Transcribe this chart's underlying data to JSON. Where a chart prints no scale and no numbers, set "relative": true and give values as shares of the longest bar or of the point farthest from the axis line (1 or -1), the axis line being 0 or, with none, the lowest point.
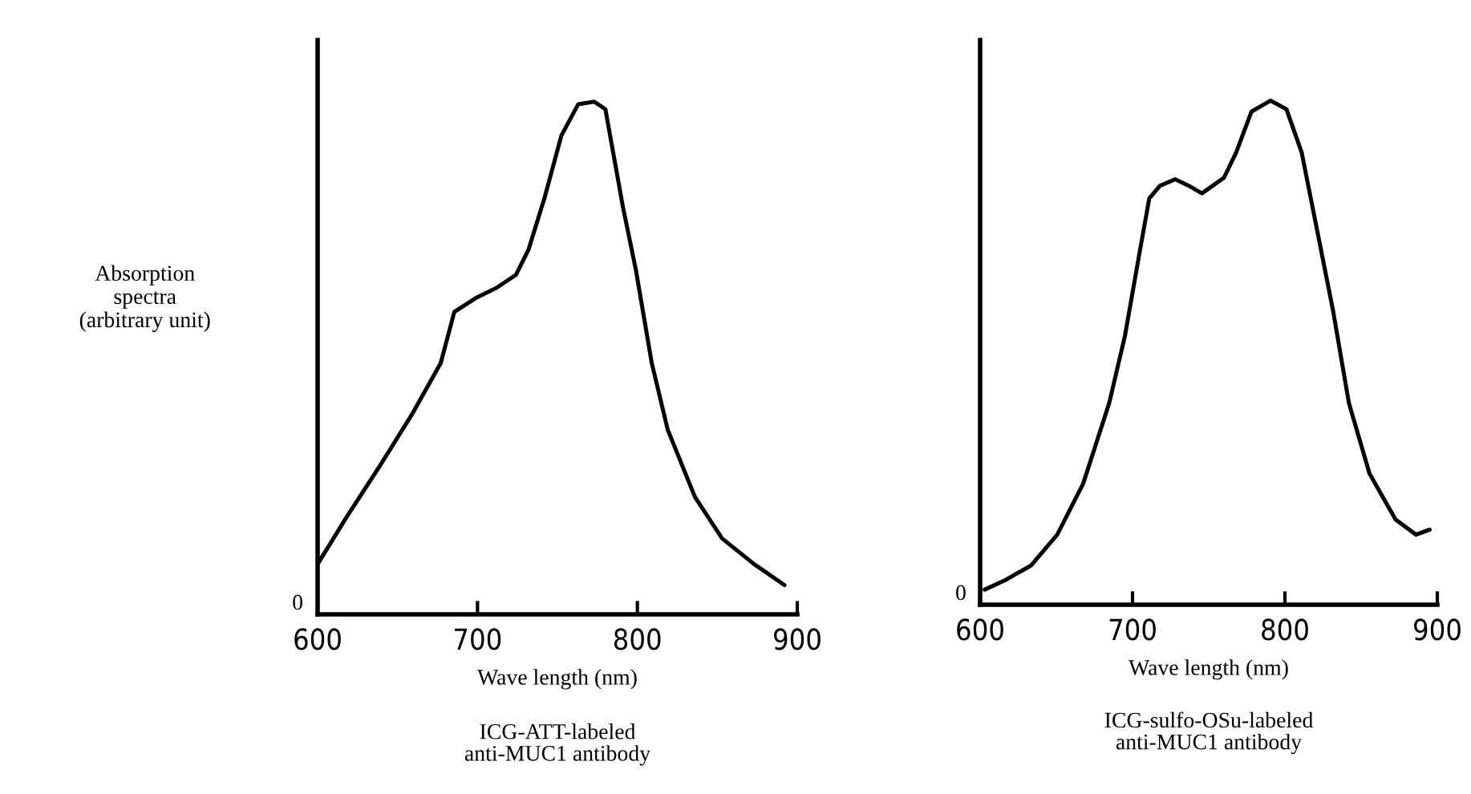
{
  "chart_data": [
    {
      "type": "line",
      "relative": true,
      "ylabel": "Absorption\nspectra\n(arbitrary unit)",
      "xlabel": "Wave length (nm)",
      "xlim": [
        600,
        900
      ],
      "xticks": [
        600,
        700,
        800,
        900
      ],
      "annotations": [
        "0",
        "ICG-ATT-labeled\nanti-MUC1 antibody"
      ],
      "series": [
        {
          "color": "#000000",
          "x": [
            600,
            618,
            639,
            659,
            677,
            685.5,
            699,
            712,
            724,
            732,
            742,
            752.5,
            763,
            773,
            780,
            791,
            799,
            809,
            819,
            836,
            853,
            873,
            892
          ],
          "values": [
            0.098,
            0.189,
            0.29,
            0.39,
            0.49,
            0.59,
            0.617,
            0.637,
            0.662,
            0.712,
            0.813,
            0.934,
            0.995,
            1.0,
            0.985,
            0.794,
            0.673,
            0.49,
            0.36,
            0.229,
            0.148,
            0.098,
            0.057
          ]
        }
      ]
    },
    {
      "type": "line",
      "relative": true,
      "xlabel": "Wave length (nm)",
      "xlim": [
        600,
        900
      ],
      "xticks": [
        600,
        700,
        800,
        900
      ],
      "annotations": [
        "0",
        "ICG-sulfo-OSu-labeled\nanti-MUC1 antibody"
      ],
      "series": [
        {
          "color": "#000000",
          "x": [
            603,
            616,
            633.5,
            650.6,
            667.6,
            684.7,
            695,
            705,
            711,
            718,
            728,
            737,
            745.5,
            760,
            768,
            778,
            790.6,
            801,
            811,
            821,
            831.6,
            842,
            855.5,
            872.6,
            886,
            895
          ],
          "values": [
            0.03,
            0.048,
            0.078,
            0.139,
            0.24,
            0.4,
            0.533,
            0.705,
            0.806,
            0.831,
            0.844,
            0.831,
            0.816,
            0.847,
            0.897,
            0.978,
            1.0,
            0.983,
            0.897,
            0.745,
            0.583,
            0.4,
            0.26,
            0.169,
            0.139,
            0.149
          ]
        }
      ]
    }
  ]
}
